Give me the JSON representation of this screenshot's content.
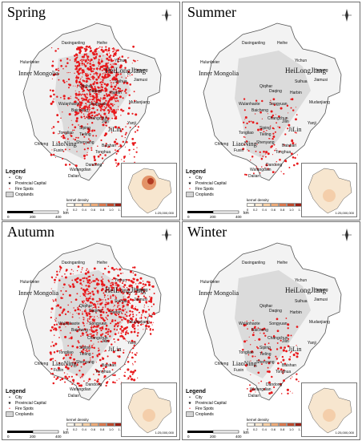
{
  "panels": [
    {
      "season": "Spring",
      "fire_level": "high",
      "fire_color": "#e8191c",
      "inset_hot": true
    },
    {
      "season": "Summer",
      "fire_level": "low",
      "fire_color": "#e8191c",
      "inset_hot": false
    },
    {
      "season": "Autumn",
      "fire_level": "high",
      "fire_color": "#e8191c",
      "inset_hot": false
    },
    {
      "season": "Winter",
      "fire_level": "low",
      "fire_color": "#e8191c",
      "inset_hot": false
    }
  ],
  "labels": {
    "inner_mongolia": "Inner Mongolia",
    "heilongjiang": "HeiLongJiang",
    "jilin": "JiLin",
    "liaoning": "LiaoNing",
    "hulunbeier": "Hulunbeier",
    "daxinganling": "Daxinganling",
    "heihe": "Heihe",
    "yichun": "Yichun",
    "hegang": "Hegang",
    "jiamusi": "Jiamusi",
    "suihua": "Suihua",
    "qiqihar": "Qiqihar",
    "daqing": "Daqing",
    "harbin": "Harbin",
    "mudanjiang": "Mudanjiang",
    "wulanhaote": "Wulanhaote",
    "songyuan": "Songyuan",
    "baicheng": "Baicheng",
    "changchun": "Changchun",
    "jilin_city": "Jilin",
    "siping": "Siping",
    "tongliao": "Tongliao",
    "chifeng": "Chifeng",
    "shenyang": "Shenyang",
    "fuxin": "Fuxin",
    "tieling": "Tieling",
    "baishan": "Baishan",
    "tonghua": "Tonghua",
    "dandong": "Dandong",
    "dalian": "Dalian",
    "yanji": "Yanji",
    "wafangdian": "Wafangdian"
  },
  "legend": {
    "title": "Legend",
    "city": "City",
    "capital": "Provincial Capital",
    "fire": "Fire Spots",
    "crop": "Croplands"
  },
  "scale": {
    "zero": "0",
    "mid": "200",
    "max": "400",
    "unit": "km"
  },
  "kernel": {
    "title": "kernel density",
    "ticks": [
      "0",
      "0.2",
      "0.4",
      "0.6",
      "0.8",
      "1.0",
      "1.2"
    ],
    "colors": [
      "#fffaf0",
      "#fde9cf",
      "#f8cfa3",
      "#ecaa78",
      "#d9794e",
      "#be4a2c",
      "#9c1f14"
    ]
  },
  "inset_scale": "1:25,000,000",
  "colors": {
    "border": "#6e6e6e",
    "cropland": "#d4d4d4",
    "fire": "#e8191c"
  }
}
